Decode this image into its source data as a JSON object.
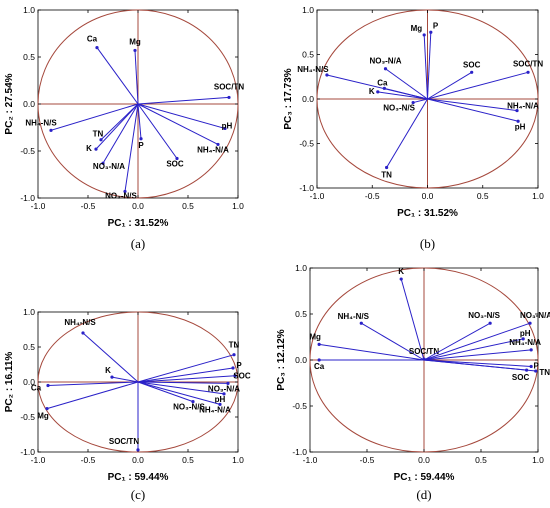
{
  "chart_data": [
    {
      "type": "scatter",
      "panel_label": "(a)",
      "xlabel": "PC₁ : 31.52%",
      "ylabel": "PC₂ : 27.54%",
      "xlim": [
        -1.0,
        1.0
      ],
      "ylim": [
        -1.0,
        1.0
      ],
      "x_ticks": [
        "-1.0",
        "-0.5",
        "0.0",
        "0.5",
        "1.0"
      ],
      "y_ticks": [
        "1.0",
        "0.5",
        "0.0",
        "-0.5",
        "-1.0"
      ],
      "colors": {
        "circle": "#a5483c",
        "arrow": "#2a21c8"
      },
      "points": [
        {
          "label": "Ca",
          "x": -0.41,
          "y": 0.6
        },
        {
          "label": "Mg",
          "x": -0.03,
          "y": 0.57
        },
        {
          "label": "SOC/TN",
          "x": 0.91,
          "y": 0.07
        },
        {
          "label": "NH₄-N/S",
          "x": -0.87,
          "y": -0.28
        },
        {
          "label": "TN",
          "x": -0.37,
          "y": -0.38
        },
        {
          "label": "K",
          "x": -0.42,
          "y": -0.48
        },
        {
          "label": "NO₃-N/A",
          "x": -0.35,
          "y": -0.63
        },
        {
          "label": "P",
          "x": 0.03,
          "y": -0.37
        },
        {
          "label": "SOC",
          "x": 0.39,
          "y": -0.58
        },
        {
          "label": "pH",
          "x": 0.87,
          "y": -0.26
        },
        {
          "label": "NH₄-N/A",
          "x": 0.8,
          "y": -0.43
        },
        {
          "label": "NO₃-N/S",
          "x": -0.13,
          "y": -0.93
        }
      ]
    },
    {
      "type": "scatter",
      "panel_label": "(b)",
      "xlabel": "PC₁ : 31.52%",
      "ylabel": "PC₃ : 17.73%",
      "xlim": [
        -1.0,
        1.0
      ],
      "ylim": [
        -1.0,
        1.0
      ],
      "x_ticks": [
        "-1.0",
        "-0.5",
        "0.0",
        "0.5",
        "1.0"
      ],
      "y_ticks": [
        "1.0",
        "0.5",
        "0.0",
        "-0.5",
        "-1.0"
      ],
      "colors": {
        "circle": "#a5483c",
        "arrow": "#2a21c8"
      },
      "points": [
        {
          "label": "Mg",
          "x": -0.03,
          "y": 0.72
        },
        {
          "label": "P",
          "x": 0.03,
          "y": 0.75
        },
        {
          "label": "NO₃-N/A",
          "x": -0.38,
          "y": 0.34
        },
        {
          "label": "NH₄-N/S",
          "x": -0.91,
          "y": 0.27
        },
        {
          "label": "SOC",
          "x": 0.4,
          "y": 0.3
        },
        {
          "label": "SOC/TN",
          "x": 0.91,
          "y": 0.3
        },
        {
          "label": "Ca",
          "x": -0.39,
          "y": 0.12
        },
        {
          "label": "K",
          "x": -0.45,
          "y": 0.08
        },
        {
          "label": "NH₄-N/A",
          "x": 0.81,
          "y": -0.13
        },
        {
          "label": "pH",
          "x": 0.82,
          "y": -0.25
        },
        {
          "label": "NO₃-N/S",
          "x": -0.13,
          "y": -0.04
        },
        {
          "label": "TN",
          "x": -0.37,
          "y": -0.77
        }
      ]
    },
    {
      "type": "scatter",
      "panel_label": "(c)",
      "xlabel": "PC₁ : 59.44%",
      "ylabel": "PC₂ : 16.11%",
      "xlim": [
        -1.0,
        1.0
      ],
      "ylim": [
        -1.0,
        1.0
      ],
      "x_ticks": [
        "-1.0",
        "-0.5",
        "0.0",
        "0.5",
        "1.0"
      ],
      "y_ticks": [
        "1.0",
        "0.5",
        "0.0",
        "-0.5",
        "-1.0"
      ],
      "colors": {
        "circle": "#a5483c",
        "arrow": "#2a21c8"
      },
      "points": [
        {
          "label": "NH₄-N/S",
          "x": -0.55,
          "y": 0.7
        },
        {
          "label": "K",
          "x": -0.26,
          "y": 0.07
        },
        {
          "label": "Ca",
          "x": -0.9,
          "y": -0.05
        },
        {
          "label": "Mg",
          "x": -0.91,
          "y": -0.38
        },
        {
          "label": "TN",
          "x": 0.96,
          "y": 0.39
        },
        {
          "label": "P",
          "x": 0.95,
          "y": 0.2
        },
        {
          "label": "SOC",
          "x": 0.97,
          "y": 0.09
        },
        {
          "label": "NO₃-N/A",
          "x": 0.9,
          "y": -0.02
        },
        {
          "label": "pH",
          "x": 0.86,
          "y": -0.17
        },
        {
          "label": "NO₃-N/S",
          "x": 0.55,
          "y": -0.28
        },
        {
          "label": "NH₄-N/A",
          "x": 0.82,
          "y": -0.32
        },
        {
          "label": "SOC/TN",
          "x": 0.0,
          "y": -0.97
        }
      ]
    },
    {
      "type": "scatter",
      "panel_label": "(d)",
      "xlabel": "PC₁ : 59.44%",
      "ylabel": "PC₃ : 12.12%",
      "xlim": [
        -1.0,
        1.0
      ],
      "ylim": [
        -1.0,
        1.0
      ],
      "x_ticks": [
        "-1.0",
        "-0.5",
        "0.0",
        "0.5",
        "1.0"
      ],
      "y_ticks": [
        "1.0",
        "0.5",
        "0.0",
        "-0.5",
        "-1.0"
      ],
      "colors": {
        "circle": "#a5483c",
        "arrow": "#2a21c8"
      },
      "points": [
        {
          "label": "K",
          "x": -0.2,
          "y": 0.88
        },
        {
          "label": "NH₄-N/S",
          "x": -0.55,
          "y": 0.4
        },
        {
          "label": "Mg",
          "x": -0.92,
          "y": 0.17
        },
        {
          "label": "Ca",
          "x": -0.92,
          "y": 0.0
        },
        {
          "label": "SOC/TN",
          "x": 0.0,
          "y": 0.01
        },
        {
          "label": "NO₃-N/S",
          "x": 0.58,
          "y": 0.4
        },
        {
          "label": "NO₃-N/A",
          "x": 0.93,
          "y": 0.4
        },
        {
          "label": "pH",
          "x": 0.87,
          "y": 0.23
        },
        {
          "label": "NH₄-N/A",
          "x": 0.94,
          "y": 0.11
        },
        {
          "label": "P",
          "x": 0.94,
          "y": -0.07
        },
        {
          "label": "SOC",
          "x": 0.9,
          "y": -0.11
        },
        {
          "label": "TN",
          "x": 0.98,
          "y": -0.12
        }
      ]
    }
  ]
}
